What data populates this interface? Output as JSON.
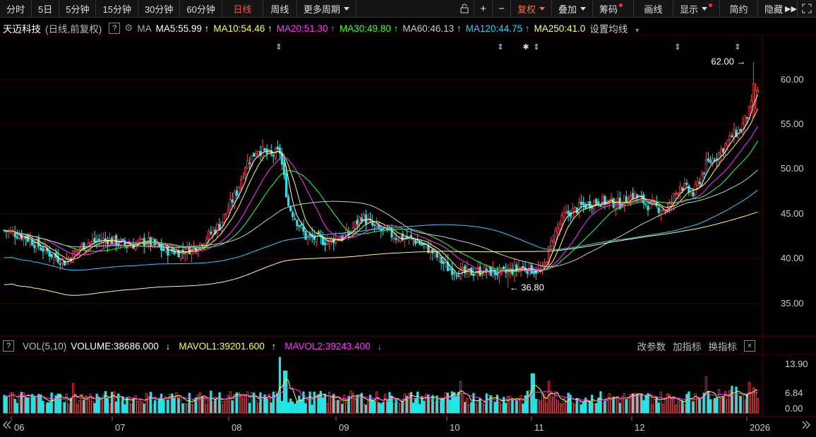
{
  "toolbar": {
    "periods": [
      "分时",
      "5日",
      "5分钟",
      "15分钟",
      "30分钟",
      "60分钟",
      "日线",
      "周线"
    ],
    "active_period": "日线",
    "more_periods": "更多周期",
    "fuquan": "复权",
    "overlay": "叠加",
    "chips": "筹码",
    "drawing": "画线",
    "display": "显示",
    "simple": "简约",
    "hide": "隐藏"
  },
  "info": {
    "stock_name": "天迈科技",
    "mode": "(日线,前复权)",
    "help": "?",
    "ma_label": "MA",
    "ma_settings": "设置均线",
    "mas": [
      {
        "label": "MA5:55.99",
        "arrow": "↑",
        "color": "#ffffff"
      },
      {
        "label": "MA10:54.46",
        "arrow": "↑",
        "color": "#ffff3d"
      },
      {
        "label": "MA20:51.30",
        "arrow": "↑",
        "color": "#ff33ff"
      },
      {
        "label": "MA30:49.80",
        "arrow": "↑",
        "color": "#33ff33"
      },
      {
        "label": "MA60:46.13",
        "arrow": "↑",
        "color": "#cccccc"
      },
      {
        "label": "MA120:44.75",
        "arrow": "↑",
        "color": "#33ccff"
      },
      {
        "label": "MA250:41.0",
        "arrow": "",
        "color": "#ffff80"
      }
    ]
  },
  "price_axis": [
    "60.00",
    "55.00",
    "50.00",
    "45.00",
    "40.00",
    "35.00"
  ],
  "annotations": {
    "high": "62.00",
    "low": "36.80"
  },
  "volume": {
    "help": "?",
    "title": "VOL(5,10)",
    "volume_label": "VOLUME:38686.000",
    "volume_arrow": "↓",
    "mavol1": "MAVOL1:39201.600",
    "mavol1_arrow": "↑",
    "mavol2": "MAVOL2:39243.400",
    "mavol2_arrow": "↓",
    "actions": [
      "改参数",
      "加指标",
      "换指标"
    ],
    "close": "×",
    "axis": [
      "13.90",
      "6.84",
      "0.00"
    ]
  },
  "date_axis": [
    "06",
    "07",
    "08",
    "09",
    "10",
    "11",
    "12",
    "2026"
  ],
  "colors": {
    "up": "#ff4040",
    "down": "#22e6e6",
    "grid": "#3a0000",
    "ma5": "#ffffff",
    "ma10": "#ffff3d",
    "ma20": "#ff33ff",
    "ma30": "#33ff33",
    "ma60": "#cccccc",
    "ma120": "#33ccff",
    "ma250": "#ffff80"
  }
}
